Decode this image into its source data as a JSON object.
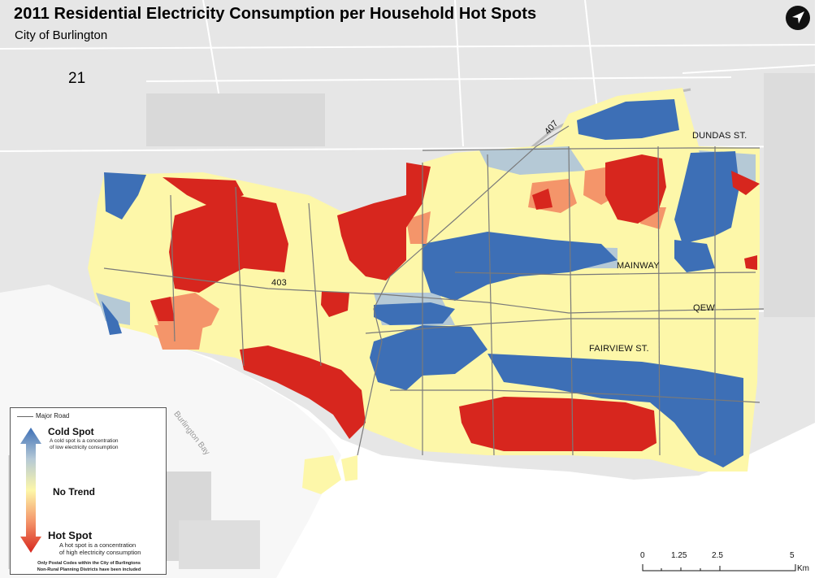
{
  "map": {
    "title": "2011 Residential Electricity Consumption per Household Hot Spots",
    "subtitle": "City of Burlington",
    "page_number": "21",
    "road_labels": {
      "dundas": "DUNDAS ST.",
      "mainway": "MAINWAY",
      "qew": "QEW",
      "fairview": "FAIRVIEW ST.",
      "hwy403": "403",
      "hwy407": "407"
    },
    "water_label": "Burlington Bay",
    "colors": {
      "hot": "#d7261e",
      "warm": "#f4956a",
      "neutral": "#fdf7a9",
      "cool": "#b5c9d6",
      "cold": "#3d6fb6",
      "water": "#ffffff",
      "land": "#e6e6e6"
    }
  },
  "legend": {
    "major_road": "Major Road",
    "cold_title": "Cold Spot",
    "cold_desc_1": "A cold spot is a concentration",
    "cold_desc_2": "of low electricity consumption",
    "no_trend": "No Trend",
    "hot_title": "Hot Spot",
    "hot_desc_1": "A hot spot is a concentration",
    "hot_desc_2": "of high electricity consumption",
    "note_1": "Only Postal Codes within the City of Burlingtons",
    "note_2": "Non-Rural Planning Districts have been included"
  },
  "scale": {
    "t0": "0",
    "t1": "1.25",
    "t2": "2.5",
    "t3": "5",
    "unit": "Km"
  },
  "north_arrow": "north-arrow-icon"
}
